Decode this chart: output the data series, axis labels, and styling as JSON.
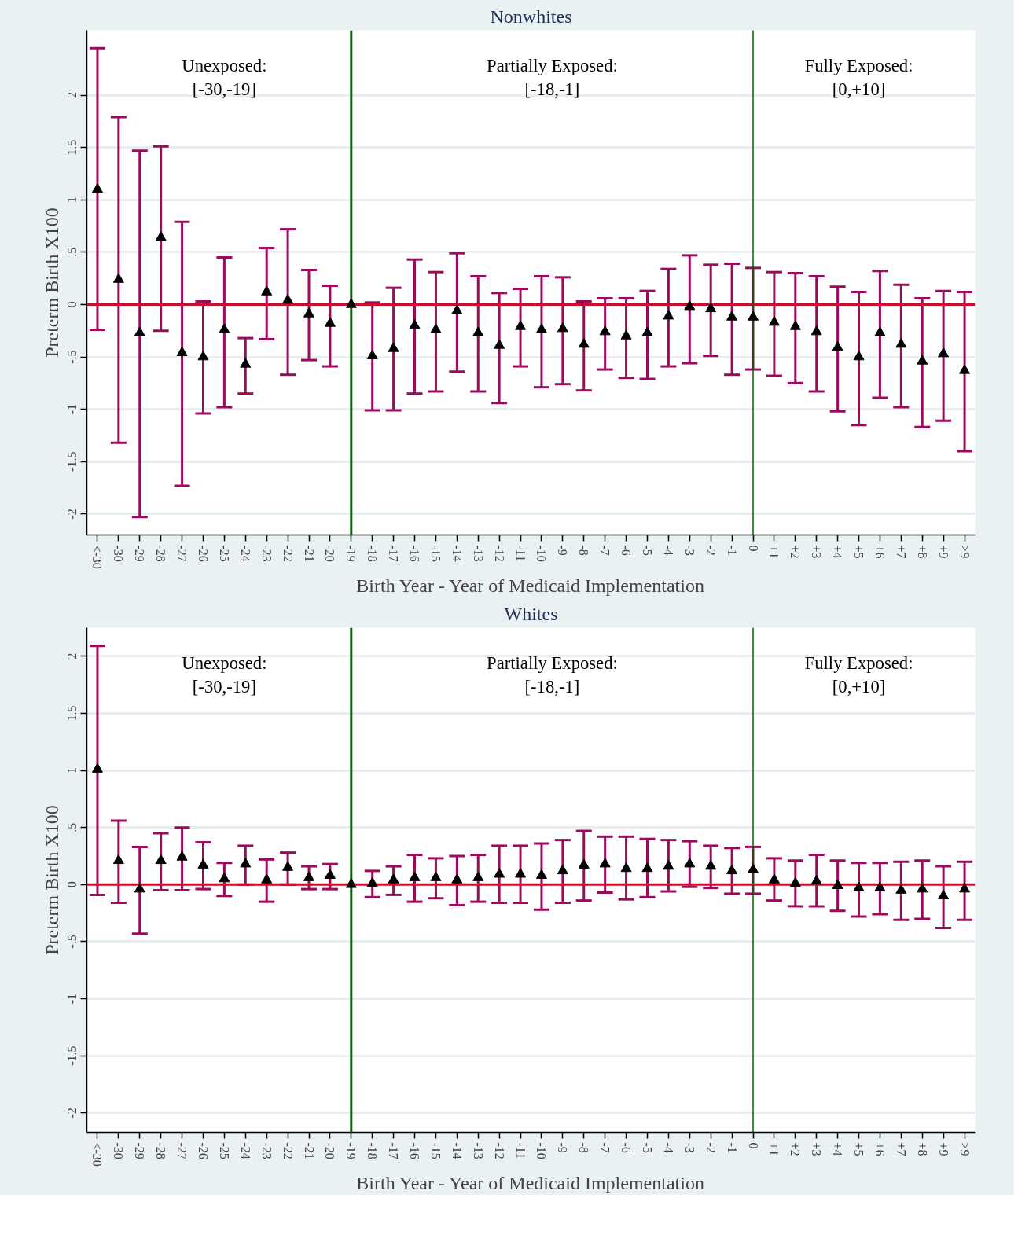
{
  "chart_data": [
    {
      "type": "scatter",
      "title": "Nonwhites",
      "xlabel": "Birth Year - Year of Medicaid Implementation",
      "ylabel": "Preterm Birth X100",
      "categories": [
        "<-30",
        "-30",
        "-29",
        "-28",
        "-27",
        "-26",
        "-25",
        "-24",
        "-23",
        "-22",
        "-21",
        "-20",
        "-19",
        "-18",
        "-17",
        "-16",
        "-15",
        "-14",
        "-13",
        "-12",
        "-11",
        "-10",
        "-9",
        "-8",
        "-7",
        "-6",
        "-5",
        "-4",
        "-3",
        "-2",
        "-1",
        "0",
        "+1",
        "+2",
        "+3",
        "+4",
        "+5",
        "+6",
        "+7",
        "+8",
        "+9",
        ">9"
      ],
      "series": [
        {
          "color": "#000000",
          "values": [
            1.1,
            0.24,
            -0.27,
            0.64,
            -0.46,
            -0.5,
            -0.24,
            -0.57,
            0.12,
            0.04,
            -0.09,
            -0.18,
            0,
            -0.49,
            -0.42,
            -0.2,
            -0.24,
            -0.06,
            -0.27,
            -0.39,
            -0.21,
            -0.24,
            -0.23,
            -0.38,
            -0.26,
            -0.3,
            -0.27,
            -0.11,
            -0.02,
            -0.04,
            -0.12,
            -0.12,
            -0.17,
            -0.21,
            -0.26,
            -0.41,
            -0.5,
            -0.27,
            -0.38,
            -0.54,
            -0.47,
            -0.63
          ],
          "errors": [
            [
              -0.24,
              2.45
            ],
            [
              -1.32,
              1.79
            ],
            [
              -2.03,
              1.47
            ],
            [
              -0.25,
              1.51
            ],
            [
              -1.73,
              0.79
            ],
            [
              -1.04,
              0.03
            ],
            [
              -0.98,
              0.45
            ],
            [
              -0.85,
              -0.32
            ],
            [
              -0.33,
              0.54
            ],
            [
              -0.67,
              0.72
            ],
            [
              -0.53,
              0.33
            ],
            [
              -0.59,
              0.18
            ],
            null,
            [
              -1.01,
              0.02
            ],
            [
              -1.01,
              0.16
            ],
            [
              -0.85,
              0.43
            ],
            [
              -0.83,
              0.31
            ],
            [
              -0.64,
              0.49
            ],
            [
              -0.83,
              0.27
            ],
            [
              -0.94,
              0.11
            ],
            [
              -0.59,
              0.15
            ],
            [
              -0.79,
              0.27
            ],
            [
              -0.76,
              0.26
            ],
            [
              -0.82,
              0.03
            ],
            [
              -0.62,
              0.06
            ],
            [
              -0.7,
              0.06
            ],
            [
              -0.71,
              0.13
            ],
            [
              -0.59,
              0.34
            ],
            [
              -0.56,
              0.47
            ],
            [
              -0.49,
              0.38
            ],
            [
              -0.67,
              0.39
            ],
            [
              -0.62,
              0.35
            ],
            [
              -0.68,
              0.31
            ],
            [
              -0.75,
              0.3
            ],
            [
              -0.83,
              0.27
            ],
            [
              -1.02,
              0.17
            ],
            [
              -1.15,
              0.12
            ],
            [
              -0.89,
              0.32
            ],
            [
              -0.98,
              0.19
            ],
            [
              -1.17,
              0.06
            ],
            [
              -1.11,
              0.13
            ],
            [
              -1.4,
              0.12
            ]
          ]
        }
      ],
      "ylim": [
        -2.2,
        2.62
      ],
      "yticks": [
        {
          "value": -2,
          "label": "-2"
        },
        {
          "value": -1.5,
          "label": "-1.5"
        },
        {
          "value": -1,
          "label": "-1"
        },
        {
          "value": -0.5,
          "label": "-.5"
        },
        {
          "value": 0,
          "label": "0"
        },
        {
          "value": 0.5,
          "label": ".5"
        },
        {
          "value": 1,
          "label": "1"
        },
        {
          "value": 1.5,
          "label": "1.5"
        },
        {
          "value": 2,
          "label": "2"
        }
      ],
      "ref_lines": [
        {
          "axis": "y",
          "value": 0,
          "color": "#c8102e"
        },
        {
          "axis": "x",
          "value": "-19",
          "color": "#006400"
        },
        {
          "axis": "x",
          "value": "0",
          "color": "#006400"
        }
      ],
      "annotations": [
        "Unexposed:\n[-30,-19]",
        "Partially Exposed:\n[-18,-1]",
        "Fully Exposed:\n[0,+10]"
      ],
      "grid": "y",
      "marker": "triangle"
    },
    {
      "type": "scatter",
      "title": "Whites",
      "xlabel": "Birth Year - Year of Medicaid Implementation",
      "ylabel": "Preterm Birth X100",
      "categories": [
        "<-30",
        "-30",
        "-29",
        "-28",
        "-27",
        "-26",
        "-25",
        "-24",
        "-23",
        "-22",
        "-21",
        "-20",
        "-19",
        "-18",
        "-17",
        "-16",
        "-15",
        "-14",
        "-13",
        "-12",
        "-11",
        "-10",
        "-9",
        "-8",
        "-7",
        "-6",
        "-5",
        "-4",
        "-3",
        "-2",
        "-1",
        "0",
        "+1",
        "+2",
        "+3",
        "+4",
        "+5",
        "+6",
        "+7",
        "+8",
        "+9",
        ">9"
      ],
      "series": [
        {
          "color": "#000000",
          "values": [
            1.01,
            0.21,
            -0.04,
            0.21,
            0.24,
            0.17,
            0.05,
            0.18,
            0.04,
            0.15,
            0.06,
            0.08,
            0,
            0.01,
            0.04,
            0.06,
            0.06,
            0.04,
            0.06,
            0.09,
            0.09,
            0.08,
            0.12,
            0.17,
            0.18,
            0.14,
            0.14,
            0.16,
            0.18,
            0.16,
            0.12,
            0.13,
            0.04,
            0.01,
            0.03,
            -0.01,
            -0.03,
            -0.03,
            -0.05,
            -0.04,
            -0.1,
            -0.04
          ],
          "errors": [
            [
              -0.09,
              2.09
            ],
            [
              -0.16,
              0.56
            ],
            [
              -0.43,
              0.33
            ],
            [
              -0.05,
              0.45
            ],
            [
              -0.05,
              0.5
            ],
            [
              -0.04,
              0.37
            ],
            [
              -0.1,
              0.19
            ],
            [
              0.0,
              0.34
            ],
            [
              -0.15,
              0.22
            ],
            [
              0.0,
              0.28
            ],
            [
              -0.04,
              0.16
            ],
            [
              -0.04,
              0.18
            ],
            null,
            [
              -0.11,
              0.12
            ],
            [
              -0.09,
              0.16
            ],
            [
              -0.15,
              0.26
            ],
            [
              -0.12,
              0.23
            ],
            [
              -0.18,
              0.25
            ],
            [
              -0.15,
              0.26
            ],
            [
              -0.16,
              0.34
            ],
            [
              -0.16,
              0.34
            ],
            [
              -0.22,
              0.36
            ],
            [
              -0.16,
              0.39
            ],
            [
              -0.14,
              0.47
            ],
            [
              -0.07,
              0.42
            ],
            [
              -0.13,
              0.42
            ],
            [
              -0.11,
              0.4
            ],
            [
              -0.06,
              0.39
            ],
            [
              -0.02,
              0.38
            ],
            [
              -0.03,
              0.34
            ],
            [
              -0.08,
              0.32
            ],
            [
              -0.08,
              0.33
            ],
            [
              -0.14,
              0.23
            ],
            [
              -0.19,
              0.21
            ],
            [
              -0.19,
              0.26
            ],
            [
              -0.23,
              0.21
            ],
            [
              -0.28,
              0.19
            ],
            [
              -0.26,
              0.19
            ],
            [
              -0.31,
              0.2
            ],
            [
              -0.3,
              0.21
            ],
            [
              -0.38,
              0.16
            ],
            [
              -0.31,
              0.2
            ]
          ]
        }
      ],
      "ylim": [
        -2.17,
        2.25
      ],
      "yticks": [
        {
          "value": -2,
          "label": "-2"
        },
        {
          "value": -1.5,
          "label": "-1.5"
        },
        {
          "value": -1,
          "label": "-1"
        },
        {
          "value": -0.5,
          "label": "-.5"
        },
        {
          "value": 0,
          "label": "0"
        },
        {
          "value": 0.5,
          "label": ".5"
        },
        {
          "value": 1,
          "label": "1"
        },
        {
          "value": 1.5,
          "label": "1.5"
        },
        {
          "value": 2,
          "label": "2"
        }
      ],
      "ref_lines": [
        {
          "axis": "y",
          "value": 0,
          "color": "#c8102e"
        },
        {
          "axis": "x",
          "value": "-19",
          "color": "#006400"
        },
        {
          "axis": "x",
          "value": "0",
          "color": "#006400"
        }
      ],
      "annotations": [
        "Unexposed:\n[-30,-19]",
        "Partially Exposed:\n[-18,-1]",
        "Fully Exposed:\n[0,+10]"
      ],
      "grid": "y",
      "marker": "triangle"
    }
  ]
}
